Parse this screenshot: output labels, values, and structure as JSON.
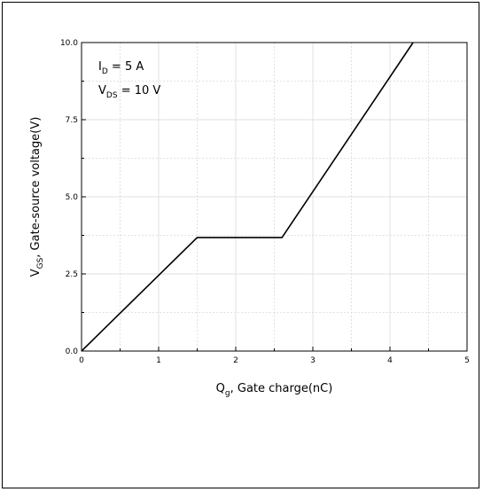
{
  "chart_data": {
    "type": "line",
    "xlabel": {
      "main": "Q",
      "sub": "g",
      "rest": ", Gate charge(nC)"
    },
    "ylabel": {
      "main": "V",
      "sub": "GS",
      "rest": ", Gate-source voltage(V)"
    },
    "xlim": [
      0,
      5
    ],
    "ylim": [
      0,
      10
    ],
    "x_ticks": [
      "0",
      "1",
      "2",
      "3",
      "4",
      "5"
    ],
    "y_ticks": [
      "0.0",
      "2.5",
      "5.0",
      "7.5",
      "10.0"
    ],
    "grid": true,
    "annotations": [
      {
        "main": "I",
        "sub": "D",
        "rest": " = 5 A"
      },
      {
        "main": "V",
        "sub": "DS",
        "rest": " = 10 V"
      }
    ],
    "series": [
      {
        "x": [
          0,
          1.5,
          2.6,
          4.3
        ],
        "y": [
          0,
          3.68,
          3.68,
          10.0
        ]
      }
    ],
    "colors": {
      "line": "#000000",
      "grid": "#d9d9d9"
    }
  }
}
